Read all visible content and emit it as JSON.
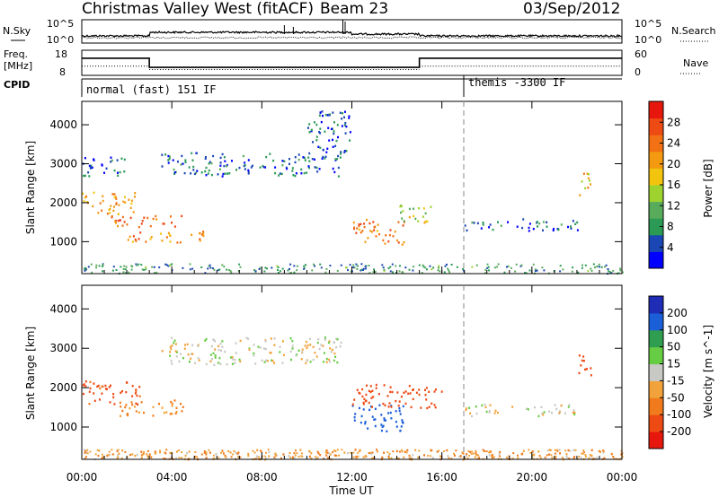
{
  "header": {
    "site": "Christmas Valley West (fitACF)",
    "beam": "Beam 23",
    "date": "03/Sep/2012"
  },
  "sky_panel": {
    "left_label": "N.Sky",
    "right_label": "N.Search",
    "left_ticks": [
      "10^5",
      "10^0"
    ],
    "right_ticks": [
      "10^5",
      "10^0"
    ]
  },
  "freq_panel": {
    "left_label_1": "Freq.",
    "left_label_2": "[MHz]",
    "right_label": "Nave",
    "left_ticks": [
      "18",
      "8"
    ],
    "right_ticks": [
      "60",
      "0"
    ],
    "freq_segments": [
      {
        "start_h": 0.0,
        "end_h": 3.0,
        "mhz": 14.8
      },
      {
        "start_h": 3.0,
        "end_h": 15.0,
        "mhz": 11.2
      },
      {
        "start_h": 15.0,
        "end_h": 24.0,
        "mhz": 14.8
      }
    ],
    "nave_segments": [
      {
        "start_h": 0.0,
        "end_h": 3.0,
        "value": 22
      },
      {
        "start_h": 3.0,
        "end_h": 15.0,
        "value": 14
      },
      {
        "start_h": 15.0,
        "end_h": 24.0,
        "value": 22
      }
    ]
  },
  "cpid": {
    "label": "CPID",
    "modes": [
      {
        "start_h": 0.0,
        "end_h": 17.0,
        "text": "normal (fast) 151 IF"
      },
      {
        "start_h": 17.0,
        "end_h": 24.0,
        "text": "themis -3300 IF"
      }
    ]
  },
  "power_panel": {
    "ylabel": "Slant Range [km]",
    "yticks": [
      "1000",
      "2000",
      "3000",
      "4000"
    ],
    "colorbar_label": "Power [dB]",
    "colorbar_ticks": [
      "4",
      "8",
      "12",
      "16",
      "20",
      "24",
      "28"
    ],
    "colors": [
      "#0000ff",
      "#1a47b3",
      "#2b9a55",
      "#59ab5c",
      "#9dd22f",
      "#f3c40e",
      "#f39a10",
      "#f27114",
      "#ee4a14",
      "#e8170d"
    ]
  },
  "velocity_panel": {
    "ylabel": "Slant Range [km]",
    "yticks": [
      "1000",
      "2000",
      "3000",
      "4000"
    ],
    "colorbar_label": "Velocity [m s^-1]",
    "colorbar_ticks": [
      "200",
      "100",
      "50",
      "15",
      "-15",
      "-50",
      "-100",
      "-200"
    ],
    "colors": [
      "#1f2cb5",
      "#1a5ed8",
      "#2f9e50",
      "#66cc44",
      "#c8c8c4",
      "#f2a23a",
      "#f07a1c",
      "#ee4a14",
      "#e8170d"
    ]
  },
  "xaxis": {
    "label": "Time UT",
    "ticks": [
      "00:00",
      "04:00",
      "08:00",
      "12:00",
      "16:00",
      "20:00",
      "00:00"
    ]
  },
  "chart_data": {
    "type": "heatmap",
    "title": "Christmas Valley West (fitACF) Beam 23 03/Sep/2012",
    "xlabel": "Time UT",
    "ylabel": "Slant Range [km]",
    "xlim_hours": [
      0,
      24
    ],
    "ylim_km": [
      180,
      4600
    ],
    "power_scatter_regions": [
      {
        "t0": 0.0,
        "t1": 2.4,
        "r0": 1700,
        "r1": 2300,
        "power_db": 22
      },
      {
        "t0": 1.2,
        "t1": 4.5,
        "r0": 1400,
        "r1": 1700,
        "power_db": 26
      },
      {
        "t0": 2.0,
        "t1": 5.5,
        "r0": 1000,
        "r1": 1300,
        "power_db": 24
      },
      {
        "t0": 0.0,
        "t1": 2.0,
        "r0": 2700,
        "r1": 3200,
        "power_db": 6
      },
      {
        "t0": 3.5,
        "t1": 11.5,
        "r0": 2700,
        "r1": 3300,
        "power_db": 6
      },
      {
        "t0": 10.0,
        "t1": 12.0,
        "r0": 3300,
        "r1": 4400,
        "power_db": 5
      },
      {
        "t0": 12.0,
        "t1": 14.3,
        "r0": 950,
        "r1": 1600,
        "power_db": 25
      },
      {
        "t0": 14.0,
        "t1": 15.5,
        "r0": 1500,
        "r1": 2000,
        "power_db": 16
      },
      {
        "t0": 17.0,
        "t1": 22.0,
        "r0": 1300,
        "r1": 1600,
        "power_db": 6
      },
      {
        "t0": 22.0,
        "t1": 22.6,
        "r0": 2200,
        "r1": 2800,
        "power_db": 20
      }
    ],
    "velocity_scatter_regions": [
      {
        "t0": 0.0,
        "t1": 2.6,
        "r0": 1600,
        "r1": 2200,
        "vel": -120
      },
      {
        "t0": 1.5,
        "t1": 4.5,
        "r0": 1300,
        "r1": 1700,
        "vel": -60
      },
      {
        "t0": 3.5,
        "t1": 11.5,
        "r0": 2600,
        "r1": 3300,
        "vel": 0
      },
      {
        "t0": 12.0,
        "t1": 14.3,
        "r0": 900,
        "r1": 1600,
        "vel": 150
      },
      {
        "t0": 12.0,
        "t1": 16.0,
        "r0": 1500,
        "r1": 2100,
        "vel": -200
      },
      {
        "t0": 17.0,
        "t1": 22.0,
        "r0": 1300,
        "r1": 1600,
        "vel": 0
      },
      {
        "t0": 22.0,
        "t1": 22.6,
        "r0": 2300,
        "r1": 2900,
        "vel": -200
      },
      {
        "t0": 0.0,
        "t1": 24.0,
        "r0": 200,
        "r1": 450,
        "vel": -40
      }
    ]
  }
}
